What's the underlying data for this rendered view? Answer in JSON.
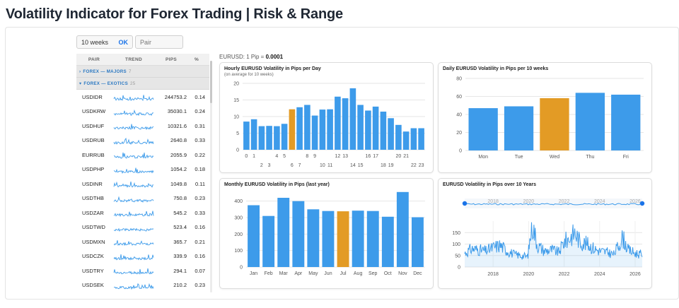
{
  "page": {
    "title": "Volatility Indicator for Forex Trading | Risk & Range"
  },
  "controls": {
    "weeks_value": "10 weeks",
    "ok_label": "OK",
    "pair_placeholder": "Pair"
  },
  "pip_note": {
    "prefix": "EURUSD: 1 Pip = ",
    "value": "0.0001"
  },
  "table": {
    "headers": [
      "PAIR",
      "TREND",
      "PIPS",
      "%"
    ],
    "groups": [
      {
        "label": "FOREX — MAJORS",
        "count": "7"
      },
      {
        "label": "FOREX — EXOTICS",
        "count": "25"
      }
    ],
    "rows": [
      {
        "pair": "USDIDR",
        "pips": "244753.2",
        "pct": "0.14"
      },
      {
        "pair": "USDKRW",
        "pips": "35030.1",
        "pct": "0.24"
      },
      {
        "pair": "USDHUF",
        "pips": "10321.6",
        "pct": "0.31"
      },
      {
        "pair": "USDRUB",
        "pips": "2640.8",
        "pct": "0.33"
      },
      {
        "pair": "EURRUB",
        "pips": "2055.9",
        "pct": "0.22"
      },
      {
        "pair": "USDPHP",
        "pips": "1054.2",
        "pct": "0.18"
      },
      {
        "pair": "USDINR",
        "pips": "1049.8",
        "pct": "0.11"
      },
      {
        "pair": "USDTHB",
        "pips": "750.8",
        "pct": "0.23"
      },
      {
        "pair": "USDZAR",
        "pips": "545.2",
        "pct": "0.33"
      },
      {
        "pair": "USDTWD",
        "pips": "523.4",
        "pct": "0.16"
      },
      {
        "pair": "USDMXN",
        "pips": "365.7",
        "pct": "0.21"
      },
      {
        "pair": "USDCZK",
        "pips": "339.9",
        "pct": "0.16"
      },
      {
        "pair": "USDTRY",
        "pips": "294.1",
        "pct": "0.07"
      },
      {
        "pair": "USDSEK",
        "pips": "210.2",
        "pct": "0.23"
      }
    ]
  },
  "colors": {
    "bar": "#3d9bea",
    "highlight": "#e39b25",
    "accent": "#1a73e8"
  },
  "chart_data": [
    {
      "type": "bar",
      "title": "Hourly EURUSD Volatility in Pips per Day",
      "subtitle": "(on average for 10 weeks)",
      "categories": [
        "0",
        "1",
        "2",
        "3",
        "4",
        "5",
        "6",
        "7",
        "8",
        "9",
        "10",
        "11",
        "12",
        "13",
        "14",
        "15",
        "16",
        "17",
        "18",
        "19",
        "20",
        "21",
        "22",
        "23"
      ],
      "values": [
        8.5,
        9.2,
        7.1,
        7.2,
        7.1,
        7.8,
        12.2,
        12.8,
        13.5,
        10.3,
        12.1,
        12.2,
        16.0,
        15.5,
        18.5,
        13.5,
        11.8,
        13.0,
        11.5,
        9.5,
        7.5,
        5.5,
        6.5,
        6.5
      ],
      "highlight_index": 6,
      "ylim": [
        0,
        20
      ],
      "yticks": [
        0,
        5,
        10,
        15,
        20
      ],
      "tick_labels_top": [
        "0",
        "1",
        "4",
        "5",
        "8",
        "9",
        "12",
        "13",
        "16",
        "17",
        "20",
        "21"
      ],
      "tick_labels_bottom": [
        "2",
        "3",
        "6",
        "7",
        "10",
        "11",
        "14",
        "15",
        "18",
        "19",
        "22",
        "23"
      ]
    },
    {
      "type": "bar",
      "title": "Daily EURUSD Volatility in Pips per 10 weeks",
      "categories": [
        "Mon",
        "Tue",
        "Wed",
        "Thu",
        "Fri"
      ],
      "values": [
        47,
        49,
        58,
        64,
        62
      ],
      "highlight_index": 2,
      "ylim": [
        0,
        80
      ],
      "yticks": [
        0,
        20,
        40,
        60,
        80
      ]
    },
    {
      "type": "bar",
      "title": "Monthly EURUSD Volatility in Pips (last year)",
      "categories": [
        "Jan",
        "Feb",
        "Mar",
        "Apr",
        "May",
        "Jun",
        "Jul",
        "Aug",
        "Sep",
        "Oct",
        "Nov",
        "Dec"
      ],
      "values": [
        375,
        310,
        420,
        400,
        350,
        340,
        338,
        342,
        340,
        305,
        455,
        302
      ],
      "highlight_index": 6,
      "ylim": [
        0,
        450
      ],
      "yticks": [
        0,
        100,
        200,
        300,
        400
      ]
    },
    {
      "type": "line",
      "title": "EURUSD Volatility in Pips over 10 Years",
      "x_range": [
        2016.4,
        2026.4
      ],
      "xticks": [
        "2018",
        "2020",
        "2022",
        "2024",
        "2026"
      ],
      "ylim": [
        0,
        200
      ],
      "yticks": [
        0,
        50,
        100,
        150
      ],
      "navigator_labels": [
        "2018",
        "2020",
        "2022",
        "2024",
        "2026"
      ],
      "series": [
        {
          "x": [
            2016.4,
            2016.8,
            2017.2,
            2017.6,
            2018.0,
            2018.4,
            2018.8,
            2019.2,
            2019.6,
            2019.95,
            2020.2,
            2020.5,
            2020.9,
            2021.3,
            2021.7,
            2022.0,
            2022.3,
            2022.6,
            2022.9,
            2023.3,
            2023.7,
            2024.0,
            2024.4,
            2024.8,
            2025.1,
            2025.3,
            2025.6,
            2026.0,
            2026.4
          ],
          "values": [
            60,
            80,
            75,
            70,
            85,
            95,
            70,
            55,
            50,
            45,
            190,
            95,
            70,
            75,
            65,
            110,
            125,
            150,
            110,
            100,
            80,
            70,
            65,
            55,
            100,
            130,
            75,
            60,
            55
          ]
        }
      ]
    }
  ]
}
